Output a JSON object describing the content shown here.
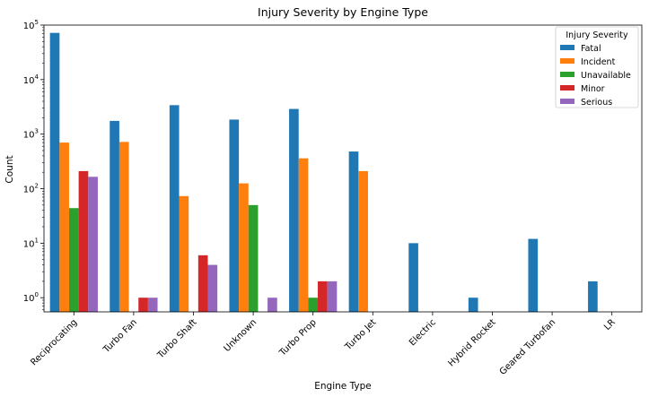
{
  "chart_data": {
    "type": "bar",
    "title": "Injury Severity by Engine Type",
    "xlabel": "Engine Type",
    "ylabel": "Count",
    "yscale": "log",
    "ylim": [
      0.55,
      100000
    ],
    "yticks": [
      {
        "value": 1,
        "base": "10",
        "exp": "0"
      },
      {
        "value": 10,
        "base": "10",
        "exp": "1"
      },
      {
        "value": 100,
        "base": "10",
        "exp": "2"
      },
      {
        "value": 1000,
        "base": "10",
        "exp": "3"
      },
      {
        "value": 10000,
        "base": "10",
        "exp": "4"
      },
      {
        "value": 100000,
        "base": "10",
        "exp": "5"
      }
    ],
    "grid": false,
    "legend_title": "Injury Severity",
    "legend_position": "top-right",
    "categories": [
      "Reciprocating",
      "Turbo Fan",
      "Turbo Shaft",
      "Unknown",
      "Turbo Prop",
      "Turbo Jet",
      "Electric",
      "Hybrid Rocket",
      "Geared Turbofan",
      "LR"
    ],
    "series": [
      {
        "name": "Fatal",
        "color": "#1f77b4",
        "values": [
          72000,
          1750,
          3400,
          1850,
          2900,
          480,
          10,
          1,
          12,
          2
        ]
      },
      {
        "name": "Incident",
        "color": "#ff7f0e",
        "values": [
          700,
          720,
          73,
          125,
          360,
          210,
          null,
          null,
          null,
          null
        ]
      },
      {
        "name": "Unavailable",
        "color": "#2ca02c",
        "values": [
          44,
          null,
          null,
          50,
          1,
          null,
          null,
          null,
          null,
          null
        ]
      },
      {
        "name": "Minor",
        "color": "#d62728",
        "values": [
          210,
          1,
          6,
          null,
          2,
          null,
          null,
          null,
          null,
          null
        ]
      },
      {
        "name": "Serious",
        "color": "#9467bd",
        "values": [
          165,
          1,
          4,
          1,
          2,
          null,
          null,
          null,
          null,
          null
        ]
      }
    ]
  }
}
